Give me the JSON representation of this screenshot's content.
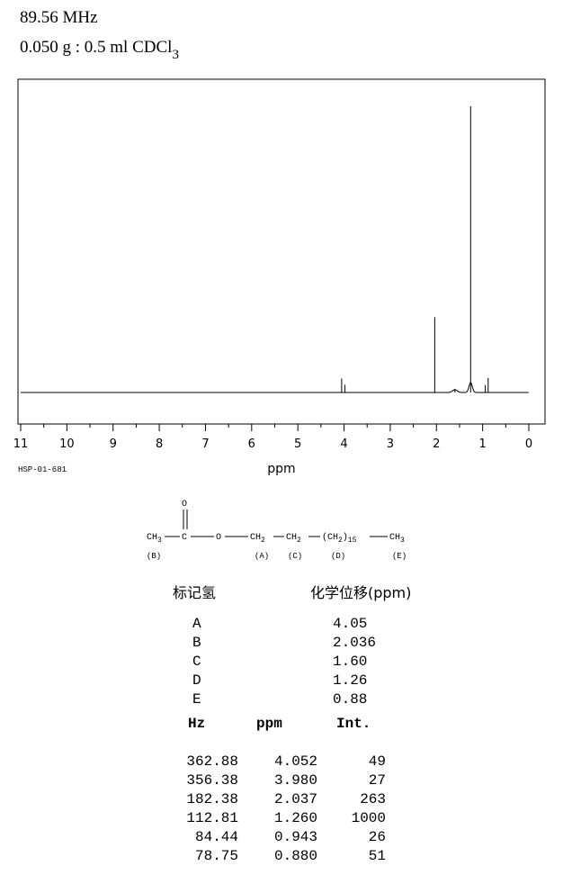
{
  "header": {
    "frequency": "89.56 MHz",
    "sample_prefix": "0.050 g : 0.5 ml CDCl",
    "sample_subscript": "3"
  },
  "code": "HSP-01-681",
  "chart_data": {
    "type": "line",
    "title": "",
    "xlabel": "ppm",
    "ylabel": "",
    "xlim": [
      11,
      0
    ],
    "x_reversed": true,
    "x_ticks": [
      "11",
      "10",
      "9",
      "8",
      "7",
      "6",
      "5",
      "4",
      "3",
      "2",
      "1",
      "0"
    ],
    "grid": false,
    "series": [
      {
        "peaks": [
          {
            "ppm": 4.052,
            "intensity": 49
          },
          {
            "ppm": 3.98,
            "intensity": 27
          },
          {
            "ppm": 2.037,
            "intensity": 263
          },
          {
            "ppm": 1.6,
            "intensity": 12
          },
          {
            "ppm": 1.26,
            "intensity": 1000
          },
          {
            "ppm": 0.943,
            "intensity": 26
          },
          {
            "ppm": 0.88,
            "intensity": 51
          }
        ]
      }
    ]
  },
  "structure": {
    "carbonyl_o": "O",
    "ch3_left": "CH",
    "ch3_left_sub": "3",
    "c": "C",
    "o": "O",
    "ch2_a": "CH",
    "ch2_a_sub": "2",
    "ch2_c": "CH",
    "ch2_c_sub": "2",
    "chain": "(CH",
    "chain_sub": "2",
    "chain_close": ")",
    "chain_n": "15",
    "ch3_right": "CH",
    "ch3_right_sub": "3",
    "label_b": "(B)",
    "label_a": "(A)",
    "label_c": "(C)",
    "label_d": "(D)",
    "label_e": "(E)"
  },
  "assignment": {
    "head_label": "标记氢",
    "head_shift": "化学位移(ppm)",
    "rows": [
      {
        "label": "A",
        "shift": "4.05"
      },
      {
        "label": "B",
        "shift": "2.036"
      },
      {
        "label": "C",
        "shift": "1.60"
      },
      {
        "label": "D",
        "shift": "1.26"
      },
      {
        "label": "E",
        "shift": "0.88"
      }
    ]
  },
  "peak_table": {
    "headers": [
      "Hz",
      "ppm",
      "Int."
    ],
    "rows": [
      [
        "362.88",
        "4.052",
        "49"
      ],
      [
        "356.38",
        "3.980",
        "27"
      ],
      [
        "182.38",
        "2.037",
        "263"
      ],
      [
        "112.81",
        "1.260",
        "1000"
      ],
      [
        "84.44",
        "0.943",
        "26"
      ],
      [
        "78.75",
        "0.880",
        "51"
      ]
    ]
  }
}
